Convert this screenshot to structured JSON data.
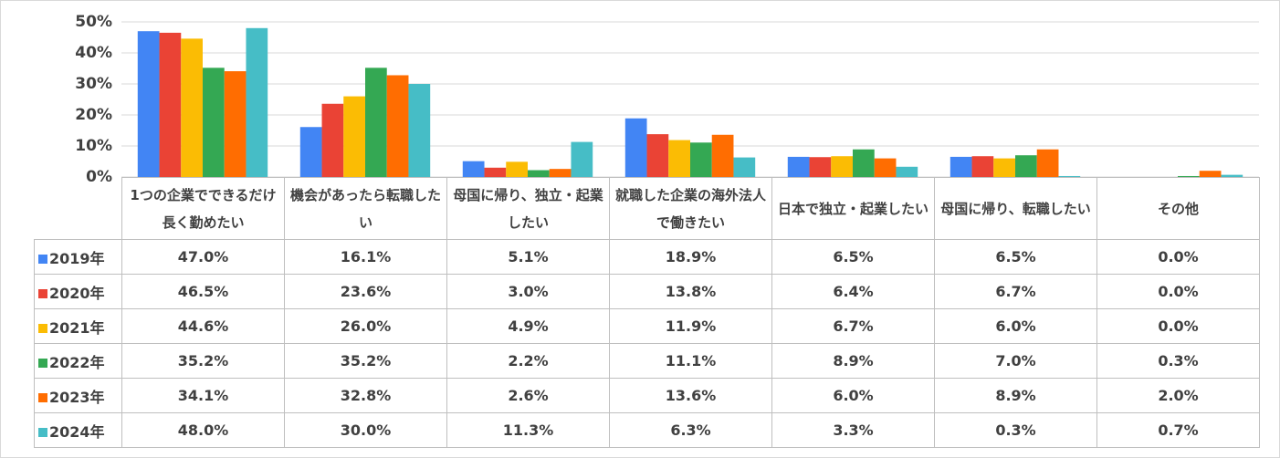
{
  "chart_data": {
    "type": "bar",
    "categories": [
      "1つの企業でできるだけ長く勤めたい",
      "機会があったら転職したい",
      "母国に帰り、独立・起業したい",
      "就職した企業の海外法人で働きたい",
      "日本で独立・起業したい",
      "母国に帰り、転職したい",
      "その他"
    ],
    "series": [
      {
        "name": "2019年",
        "color": "#4285f4",
        "values": [
          47.0,
          16.1,
          5.1,
          18.9,
          6.5,
          6.5,
          0.0
        ],
        "value_labels": [
          "47.0%",
          "16.1%",
          "5.1%",
          "18.9%",
          "6.5%",
          "6.5%",
          "0.0%"
        ]
      },
      {
        "name": "2020年",
        "color": "#ea4335",
        "values": [
          46.5,
          23.6,
          3.0,
          13.8,
          6.4,
          6.7,
          0.0
        ],
        "value_labels": [
          "46.5%",
          "23.6%",
          "3.0%",
          "13.8%",
          "6.4%",
          "6.7%",
          "0.0%"
        ]
      },
      {
        "name": "2021年",
        "color": "#fbbc04",
        "values": [
          44.6,
          26.0,
          4.9,
          11.9,
          6.7,
          6.0,
          0.0
        ],
        "value_labels": [
          "44.6%",
          "26.0%",
          "4.9%",
          "11.9%",
          "6.7%",
          "6.0%",
          "0.0%"
        ]
      },
      {
        "name": "2022年",
        "color": "#34a853",
        "values": [
          35.2,
          35.2,
          2.2,
          11.1,
          8.9,
          7.0,
          0.3
        ],
        "value_labels": [
          "35.2%",
          "35.2%",
          "2.2%",
          "11.1%",
          "8.9%",
          "7.0%",
          "0.3%"
        ]
      },
      {
        "name": "2023年",
        "color": "#ff6d01",
        "values": [
          34.1,
          32.8,
          2.6,
          13.6,
          6.0,
          8.9,
          2.0
        ],
        "value_labels": [
          "34.1%",
          "32.8%",
          "2.6%",
          "13.6%",
          "6.0%",
          "8.9%",
          "2.0%"
        ]
      },
      {
        "name": "2024年",
        "color": "#46bdc6",
        "values": [
          48.0,
          30.0,
          11.3,
          6.3,
          3.3,
          0.3,
          0.7
        ],
        "value_labels": [
          "48.0%",
          "30.0%",
          "11.3%",
          "6.3%",
          "3.3%",
          "0.3%",
          "0.7%"
        ]
      }
    ],
    "ylim": [
      0,
      50
    ],
    "yticks": [
      {
        "value": 0,
        "label": "0%"
      },
      {
        "value": 10,
        "label": "10%"
      },
      {
        "value": 20,
        "label": "20%"
      },
      {
        "value": 30,
        "label": "30%"
      },
      {
        "value": 40,
        "label": "40%"
      },
      {
        "value": 50,
        "label": "50%"
      }
    ],
    "grid": true
  }
}
